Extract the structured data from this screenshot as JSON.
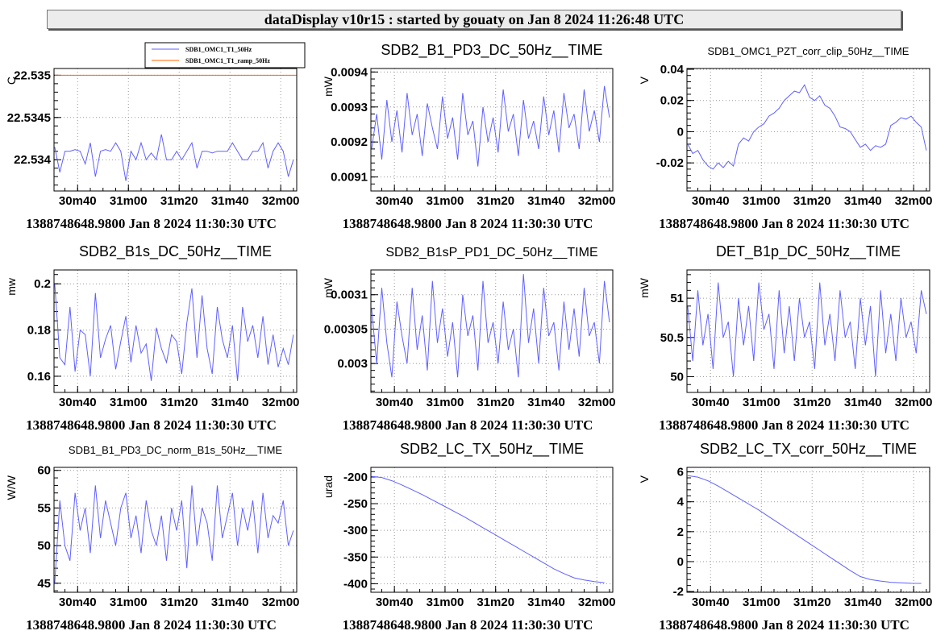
{
  "header": {
    "title": "dataDisplay v10r15 : started by gouaty on Jan  8 2024 11:26:48 UTC"
  },
  "colors": {
    "series": "#6060ff",
    "ramp": "#ff6600",
    "grid": "#999999"
  },
  "chart_data": [
    {
      "type": "line",
      "title": "",
      "ylabel": "C",
      "ylim": [
        22.53363,
        22.53508
      ],
      "yticks": [
        {
          "v": 22.534,
          "l": "22.534"
        },
        {
          "v": 22.5345,
          "l": "22.5345"
        },
        {
          "v": 22.535,
          "l": "22.535"
        }
      ],
      "xlim": [
        30.7,
        126.3
      ],
      "xticks": [
        {
          "v": 40,
          "l": "30m40"
        },
        {
          "v": 60,
          "l": "31m00"
        },
        {
          "v": 80,
          "l": "31m20"
        },
        {
          "v": 100,
          "l": "31m40"
        },
        {
          "v": 120,
          "l": "32m00"
        }
      ],
      "xlabel": "1388748648.9800 Jan 8 2024 11:30:30 UTC",
      "legend": {
        "position": "top-right",
        "entries": [
          "SDB1_OMC1_T1_50Hz",
          "SDB1_OMC1_T1_ramp_50Hz"
        ]
      },
      "series": [
        {
          "name": "SDB1_OMC1_T1_50Hz",
          "color": "series",
          "x0": 31,
          "dx": 2,
          "values": [
            22.53415,
            22.53385,
            22.5341,
            22.5341,
            22.53412,
            22.5341,
            22.53395,
            22.5342,
            22.5338,
            22.5341,
            22.53412,
            22.5341,
            22.5342,
            22.5341,
            22.53375,
            22.5341,
            22.534,
            22.5342,
            22.534,
            22.53408,
            22.534,
            22.5343,
            22.534,
            22.534,
            22.5341,
            22.534,
            22.5341,
            22.5342,
            22.5339,
            22.5341,
            22.5341,
            22.53408,
            22.5341,
            22.5341,
            22.5341,
            22.5342,
            22.5341,
            22.534,
            22.534,
            22.5341,
            22.5341,
            22.5342,
            22.5339,
            22.5341,
            22.5342,
            22.5341,
            22.5338,
            22.534
          ]
        },
        {
          "name": "SDB1_OMC1_T1_ramp_50Hz",
          "color": "ramp",
          "x0": 31,
          "dx": 95,
          "values": [
            22.535,
            22.535
          ]
        }
      ]
    },
    {
      "type": "line",
      "title": "SDB2_B1_PD3_DC_50Hz__TIME",
      "ylabel": "mW",
      "ylim": [
        0.00906,
        0.00941
      ],
      "yticks": [
        {
          "v": 0.0091,
          "l": "0.0091"
        },
        {
          "v": 0.0092,
          "l": "0.0092"
        },
        {
          "v": 0.0093,
          "l": "0.0093"
        },
        {
          "v": 0.0094,
          "l": "0.0094"
        }
      ],
      "xlim": [
        30.7,
        126.3
      ],
      "xticks": [
        {
          "v": 40,
          "l": "30m40"
        },
        {
          "v": 60,
          "l": "31m00"
        },
        {
          "v": 80,
          "l": "31m20"
        },
        {
          "v": 100,
          "l": "31m40"
        },
        {
          "v": 120,
          "l": "32m00"
        }
      ],
      "xlabel": "1388748648.9800 Jan 8 2024 11:30:30 UTC",
      "series": [
        {
          "name": "SDB2_B1_PD3_DC_50Hz",
          "color": "series",
          "x0": 31,
          "dx": 2,
          "values": [
            0.00918,
            0.00928,
            0.00915,
            0.00932,
            0.0092,
            0.00929,
            0.00917,
            0.00934,
            0.00922,
            0.00928,
            0.00916,
            0.00931,
            0.00924,
            0.00918,
            0.00933,
            0.00921,
            0.00927,
            0.00915,
            0.00934,
            0.00922,
            0.00926,
            0.00913,
            0.0093,
            0.0092,
            0.00927,
            0.00917,
            0.00935,
            0.00923,
            0.00928,
            0.00916,
            0.00932,
            0.00921,
            0.00926,
            0.00918,
            0.00933,
            0.00922,
            0.00929,
            0.00917,
            0.00934,
            0.00924,
            0.00928,
            0.00918,
            0.00935,
            0.00923,
            0.00929,
            0.0092,
            0.00936,
            0.00927
          ]
        }
      ]
    },
    {
      "type": "line",
      "title": "SDB1_OMC1_PZT_corr_clip_50Hz__TIME",
      "ylabel": "V",
      "ylim": [
        -0.038,
        0.0405
      ],
      "yticks": [
        {
          "v": -0.02,
          "l": "-0.02"
        },
        {
          "v": 0,
          "l": "0"
        },
        {
          "v": 0.02,
          "l": "0.02"
        },
        {
          "v": 0.04,
          "l": "0.04"
        }
      ],
      "xlim": [
        30.7,
        126.3
      ],
      "xticks": [
        {
          "v": 40,
          "l": "30m40"
        },
        {
          "v": 60,
          "l": "31m00"
        },
        {
          "v": 80,
          "l": "31m20"
        },
        {
          "v": 100,
          "l": "31m40"
        },
        {
          "v": 120,
          "l": "32m00"
        }
      ],
      "xlabel": "1388748648.9800 Jan 8 2024 11:30:30 UTC",
      "series": [
        {
          "name": "SDB1_OMC1_PZT_corr_clip_50Hz",
          "color": "series",
          "x0": 31,
          "dx": 2,
          "values": [
            -0.008,
            -0.014,
            -0.012,
            -0.018,
            -0.022,
            -0.024,
            -0.02,
            -0.023,
            -0.019,
            -0.022,
            -0.008,
            -0.004,
            -0.006,
            0.0,
            0.003,
            0.005,
            0.01,
            0.012,
            0.015,
            0.02,
            0.023,
            0.026,
            0.025,
            0.03,
            0.022,
            0.02,
            0.023,
            0.017,
            0.015,
            0.01,
            0.003,
            0.002,
            0.0,
            -0.005,
            -0.01,
            -0.008,
            -0.012,
            -0.009,
            -0.01,
            -0.008,
            0.004,
            0.006,
            0.009,
            0.008,
            0.01,
            0.006,
            0.003,
            -0.012
          ]
        }
      ]
    },
    {
      "type": "line",
      "title": "SDB2_B1s_DC_50Hz__TIME",
      "ylabel": "mw",
      "ylim": [
        0.153,
        0.206
      ],
      "yticks": [
        {
          "v": 0.16,
          "l": "0.16"
        },
        {
          "v": 0.18,
          "l": "0.18"
        },
        {
          "v": 0.2,
          "l": "0.2"
        }
      ],
      "xlim": [
        30.7,
        126.3
      ],
      "xticks": [
        {
          "v": 40,
          "l": "30m40"
        },
        {
          "v": 60,
          "l": "31m00"
        },
        {
          "v": 80,
          "l": "31m20"
        },
        {
          "v": 100,
          "l": "31m40"
        },
        {
          "v": 120,
          "l": "32m00"
        }
      ],
      "xlabel": "1388748648.9800 Jan 8 2024 11:30:30 UTC",
      "series": [
        {
          "name": "SDB2_B1s_DC_50Hz",
          "color": "series",
          "x0": 31,
          "dx": 2,
          "values": [
            0.2,
            0.168,
            0.165,
            0.19,
            0.162,
            0.18,
            0.178,
            0.16,
            0.196,
            0.168,
            0.176,
            0.182,
            0.163,
            0.175,
            0.186,
            0.166,
            0.182,
            0.17,
            0.174,
            0.158,
            0.181,
            0.172,
            0.166,
            0.178,
            0.175,
            0.161,
            0.183,
            0.198,
            0.168,
            0.195,
            0.172,
            0.161,
            0.19,
            0.176,
            0.168,
            0.182,
            0.158,
            0.19,
            0.175,
            0.182,
            0.168,
            0.186,
            0.165,
            0.178,
            0.164,
            0.172,
            0.165,
            0.178
          ]
        }
      ]
    },
    {
      "type": "line",
      "title": "SDB2_B1sP_PD1_DC_50Hz__TIME",
      "ylabel": "mW",
      "ylim": [
        0.002958,
        0.003136
      ],
      "yticks": [
        {
          "v": 0.003,
          "l": "0.003"
        },
        {
          "v": 0.00305,
          "l": "0.00305"
        },
        {
          "v": 0.0031,
          "l": "0.0031"
        }
      ],
      "xlim": [
        30.7,
        126.3
      ],
      "xticks": [
        {
          "v": 40,
          "l": "30m40"
        },
        {
          "v": 60,
          "l": "31m00"
        },
        {
          "v": 80,
          "l": "31m20"
        },
        {
          "v": 100,
          "l": "31m40"
        },
        {
          "v": 120,
          "l": "32m00"
        }
      ],
      "xlabel": "1388748648.9800 Jan 8 2024 11:30:30 UTC",
      "series": [
        {
          "name": "SDB2_B1sP_PD1_DC_50Hz",
          "color": "series",
          "x0": 31,
          "dx": 2,
          "values": [
            0.00308,
            0.003,
            0.00311,
            0.00303,
            0.00298,
            0.00309,
            0.00304,
            0.003,
            0.00311,
            0.00302,
            0.00307,
            0.00299,
            0.00312,
            0.00303,
            0.00308,
            0.00301,
            0.00306,
            0.00298,
            0.0031,
            0.00304,
            0.00307,
            0.00299,
            0.00312,
            0.00303,
            0.00306,
            0.003,
            0.00309,
            0.00302,
            0.00305,
            0.00298,
            0.00313,
            0.00303,
            0.00308,
            0.003,
            0.00311,
            0.00304,
            0.00306,
            0.00299,
            0.00309,
            0.00302,
            0.00308,
            0.00301,
            0.00311,
            0.00304,
            0.00306,
            0.003,
            0.00312,
            0.00306
          ]
        }
      ]
    },
    {
      "type": "line",
      "title": "DET_B1p_DC_50Hz__TIME",
      "ylabel": "mW",
      "ylim": [
        49.8,
        51.36
      ],
      "yticks": [
        {
          "v": 50,
          "l": "50"
        },
        {
          "v": 50.5,
          "l": "50.5"
        },
        {
          "v": 51,
          "l": "51"
        }
      ],
      "xlim": [
        30.7,
        126.3
      ],
      "xticks": [
        {
          "v": 40,
          "l": "30m40"
        },
        {
          "v": 60,
          "l": "31m00"
        },
        {
          "v": 80,
          "l": "31m20"
        },
        {
          "v": 100,
          "l": "31m40"
        },
        {
          "v": 120,
          "l": "32m00"
        }
      ],
      "xlabel": "1388748648.9800 Jan 8 2024 11:30:30 UTC",
      "series": [
        {
          "name": "DET_B1p_DC_50Hz",
          "color": "series",
          "x0": 31,
          "dx": 2,
          "values": [
            50.9,
            50.2,
            51.1,
            50.4,
            50.8,
            50.1,
            51.2,
            50.5,
            50.7,
            50.0,
            51.0,
            50.4,
            50.9,
            50.2,
            51.2,
            50.6,
            50.8,
            50.1,
            51.1,
            50.3,
            50.9,
            50.2,
            51.0,
            50.5,
            50.7,
            50.1,
            51.2,
            50.4,
            50.8,
            50.2,
            51.1,
            50.5,
            50.7,
            50.1,
            51.0,
            50.4,
            50.9,
            50.0,
            51.1,
            50.3,
            50.8,
            50.2,
            51.0,
            50.5,
            50.7,
            50.3,
            51.1,
            50.8
          ]
        }
      ]
    },
    {
      "type": "line",
      "title": "SDB1_B1_PD3_DC_norm_B1s_50Hz__TIME",
      "ylabel": "W/W",
      "ylim": [
        43.8,
        60.4
      ],
      "yticks": [
        {
          "v": 45,
          "l": "45"
        },
        {
          "v": 50,
          "l": "50"
        },
        {
          "v": 55,
          "l": "55"
        },
        {
          "v": 60,
          "l": "60"
        }
      ],
      "xlim": [
        30.7,
        126.3
      ],
      "xticks": [
        {
          "v": 40,
          "l": "30m40"
        },
        {
          "v": 60,
          "l": "31m00"
        },
        {
          "v": 80,
          "l": "31m20"
        },
        {
          "v": 100,
          "l": "31m40"
        },
        {
          "v": 120,
          "l": "32m00"
        }
      ],
      "xlabel": "1388748648.9800 Jan 8 2024 11:30:30 UTC",
      "series": [
        {
          "name": "SDB1_B1_PD3_DC_norm_B1s_50Hz",
          "color": "series",
          "x0": 31,
          "dx": 2,
          "values": [
            45,
            56,
            50,
            48,
            57,
            52,
            55,
            49,
            58,
            51,
            56,
            53,
            50,
            55,
            57,
            51,
            54,
            49,
            56,
            52,
            50,
            54,
            48,
            55,
            52,
            56,
            47,
            58,
            50,
            55,
            53,
            48,
            58,
            51,
            54,
            57,
            50,
            55,
            52,
            56,
            49,
            57,
            51,
            54,
            53,
            56,
            50,
            52
          ]
        }
      ]
    },
    {
      "type": "line",
      "title": "SDB2_LC_TX_50Hz__TIME",
      "ylabel": "urad",
      "ylim": [
        -416,
        -182
      ],
      "yticks": [
        {
          "v": -400,
          "l": "-400"
        },
        {
          "v": -350,
          "l": "-350"
        },
        {
          "v": -300,
          "l": "-300"
        },
        {
          "v": -250,
          "l": "-250"
        },
        {
          "v": -200,
          "l": "-200"
        }
      ],
      "xlim": [
        30.7,
        126.3
      ],
      "xticks": [
        {
          "v": 40,
          "l": "30m40"
        },
        {
          "v": 60,
          "l": "31m00"
        },
        {
          "v": 80,
          "l": "31m20"
        },
        {
          "v": 100,
          "l": "31m40"
        },
        {
          "v": 120,
          "l": "32m00"
        }
      ],
      "xlabel": "1388748648.9800 Jan 8 2024 11:30:30 UTC",
      "series": [
        {
          "name": "SDB2_LC_TX_50Hz",
          "color": "series",
          "x0": 31,
          "dx": 4,
          "values": [
            -199,
            -201,
            -207,
            -215,
            -224,
            -233,
            -243,
            -253,
            -263,
            -273,
            -284,
            -295,
            -306,
            -317,
            -328,
            -339,
            -350,
            -361,
            -372,
            -381,
            -389,
            -393,
            -396,
            -398
          ]
        }
      ]
    },
    {
      "type": "line",
      "title": "SDB2_LC_TX_corr_50Hz__TIME",
      "ylabel": "V",
      "ylim": [
        -2.05,
        6.3
      ],
      "yticks": [
        {
          "v": -2,
          "l": "-2"
        },
        {
          "v": 0,
          "l": "0"
        },
        {
          "v": 2,
          "l": "2"
        },
        {
          "v": 4,
          "l": "4"
        },
        {
          "v": 6,
          "l": "6"
        }
      ],
      "xlim": [
        30.7,
        126.3
      ],
      "xticks": [
        {
          "v": 40,
          "l": "30m40"
        },
        {
          "v": 60,
          "l": "31m00"
        },
        {
          "v": 80,
          "l": "31m20"
        },
        {
          "v": 100,
          "l": "31m40"
        },
        {
          "v": 120,
          "l": "32m00"
        }
      ],
      "xlabel": "1388748648.9800 Jan 8 2024 11:30:30 UTC",
      "series": [
        {
          "name": "SDB2_LC_TX_corr_50Hz",
          "color": "series",
          "x0": 31,
          "dx": 4,
          "values": [
            5.75,
            5.65,
            5.4,
            5.05,
            4.65,
            4.25,
            3.85,
            3.45,
            3.0,
            2.55,
            2.1,
            1.65,
            1.2,
            0.75,
            0.3,
            -0.15,
            -0.6,
            -1.0,
            -1.2,
            -1.3,
            -1.38,
            -1.42,
            -1.45,
            -1.46
          ]
        }
      ]
    }
  ]
}
